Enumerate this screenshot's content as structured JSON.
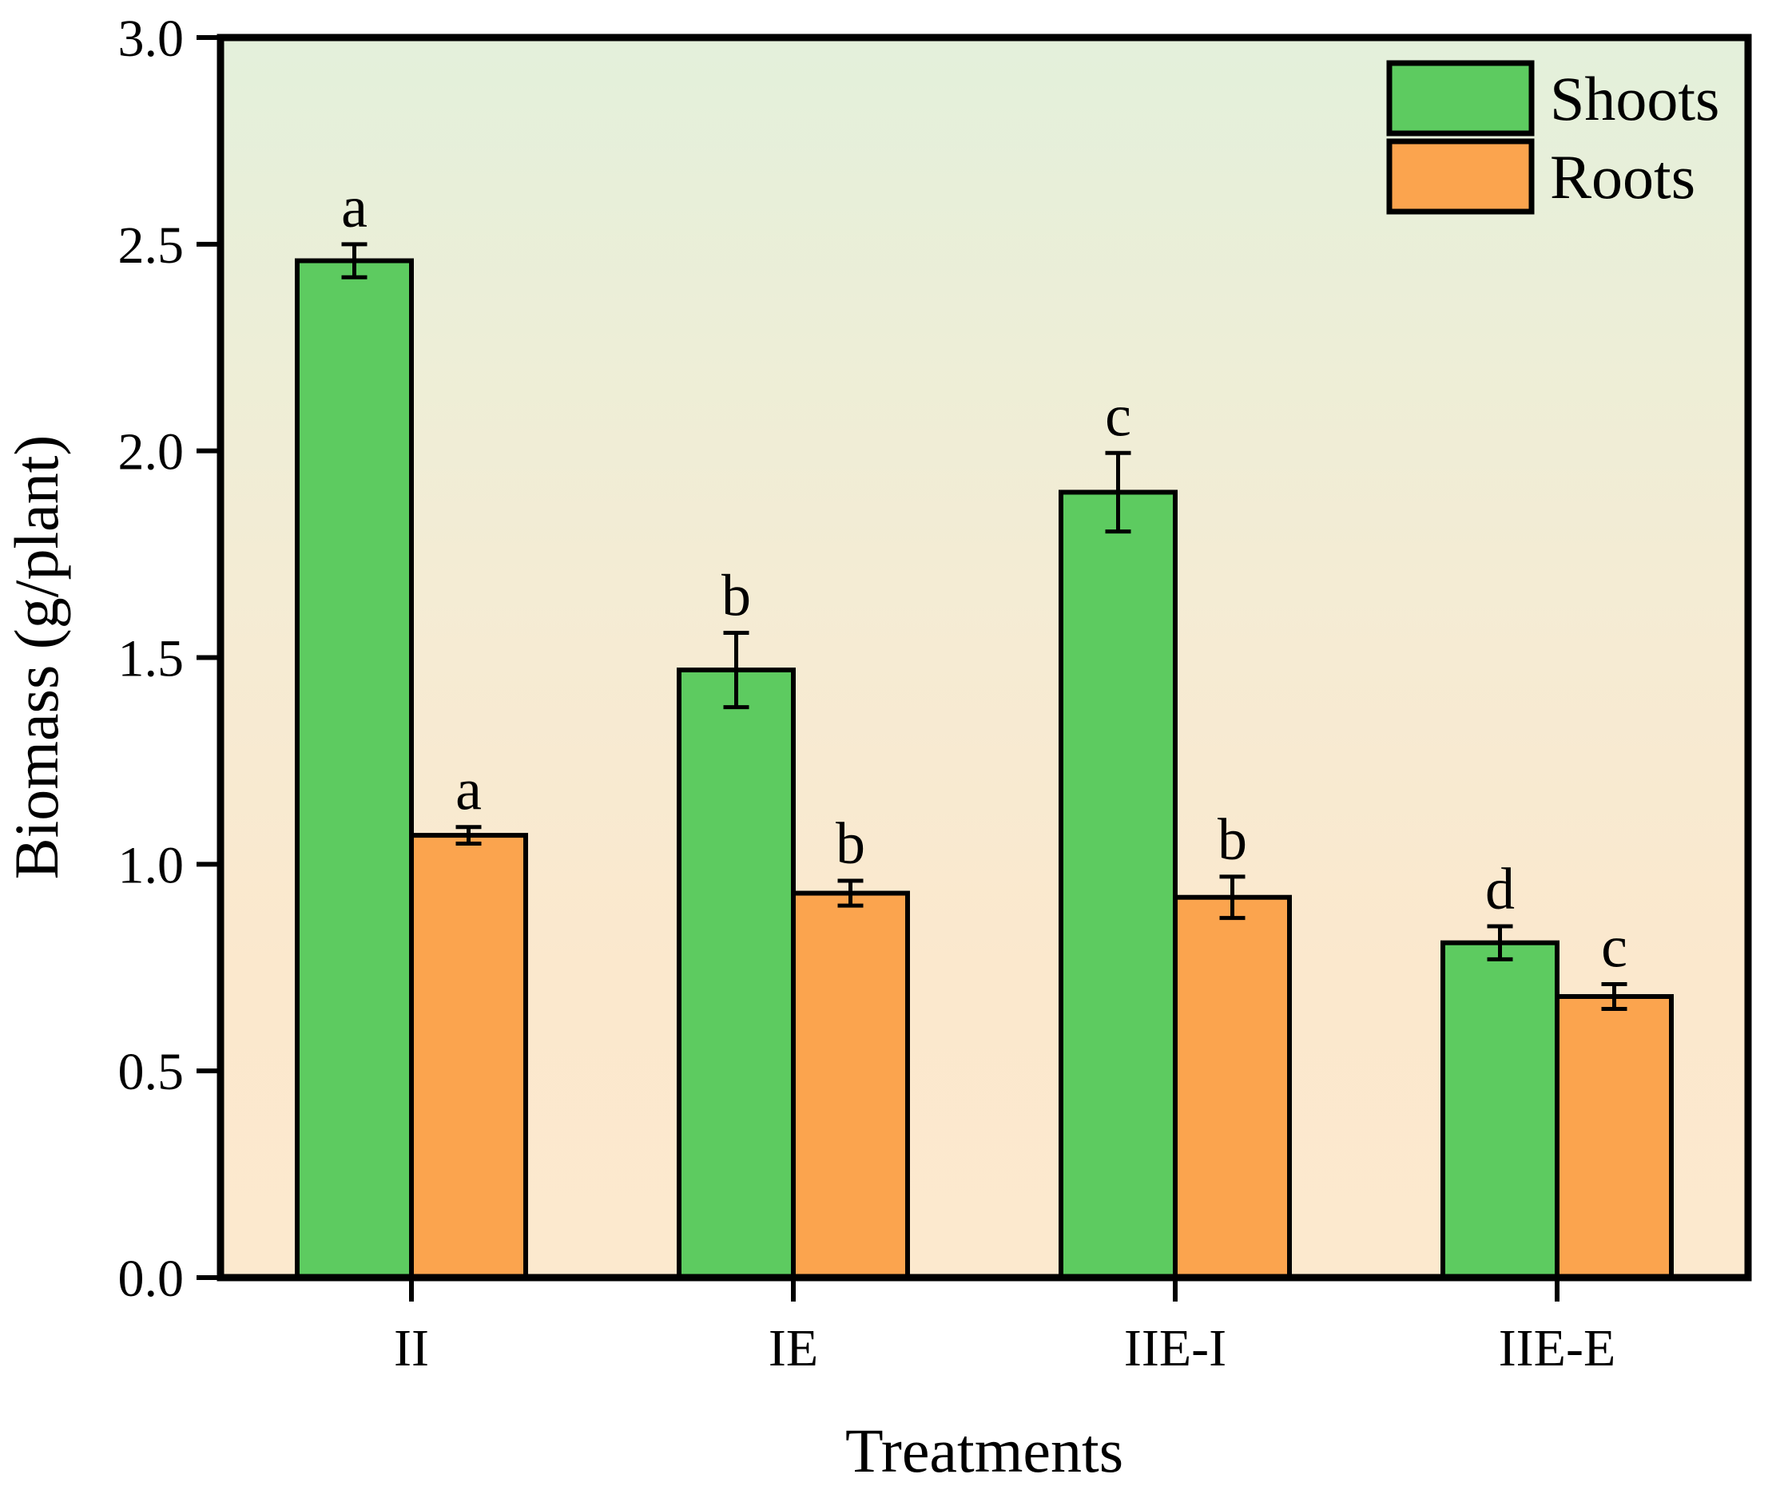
{
  "chart_data": {
    "type": "bar",
    "title": "",
    "xlabel": "Treatments",
    "ylabel": "Biomass (g/plant)",
    "categories": [
      "II",
      "IE",
      "IIE-I",
      "IIE-E"
    ],
    "series": [
      {
        "name": "Shoots",
        "color": "#5dcb60",
        "values": [
          2.46,
          1.47,
          1.9,
          0.81
        ],
        "errors": [
          0.04,
          0.09,
          0.095,
          0.04
        ],
        "letters": [
          "a",
          "b",
          "c",
          "d"
        ]
      },
      {
        "name": "Roots",
        "color": "#fba44e",
        "values": [
          1.07,
          0.93,
          0.92,
          0.68
        ],
        "errors": [
          0.02,
          0.03,
          0.05,
          0.03
        ],
        "letters": [
          "a",
          "b",
          "b",
          "c"
        ]
      }
    ],
    "ylim": [
      0,
      3
    ],
    "ytick_step": 0.5,
    "ytick_labels": [
      "0.0",
      "0.5",
      "1.0",
      "1.5",
      "2.0",
      "2.5",
      "3.0"
    ],
    "grid": false,
    "legend_position": "top-right",
    "bar_outline_color": "#000000",
    "frame_color": "#000000",
    "background_gradient": [
      "#e3f0db",
      "#edeed7",
      "#f6ebd3",
      "#fbe8cd",
      "#fce9ce"
    ]
  }
}
